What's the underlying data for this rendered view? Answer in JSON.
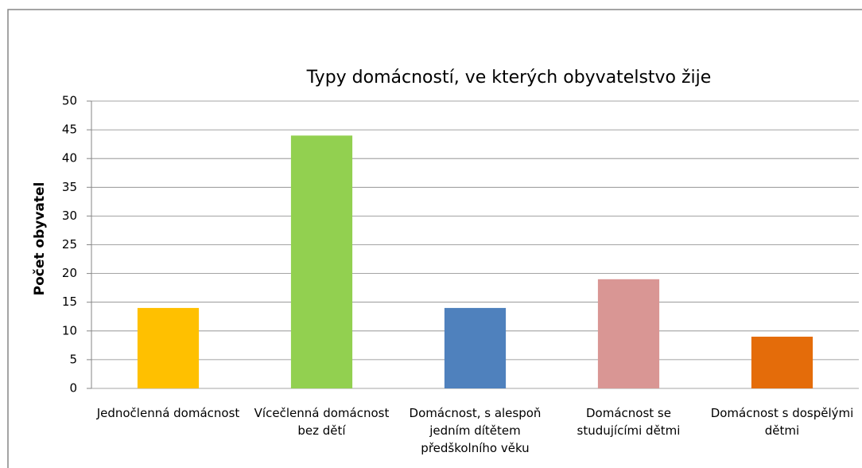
{
  "chart_data": {
    "type": "bar",
    "title": "Typy domácností,  ve kterých obyvatelstvo žije",
    "y_label": "Počet obyvatel",
    "categories": [
      "Jednočlenná domácnost",
      "Vícečlenná domácnost bez dětí",
      "Domácnost, s alespoň jedním dítětem předškolního věku",
      "Domácnost se studujícími dětmi",
      "Domácnost s dospělými dětmi"
    ],
    "values": [
      14,
      44,
      14,
      19,
      9
    ],
    "colors": [
      "#ffc000",
      "#92d050",
      "#4f81bd",
      "#d99694",
      "#e46c0a"
    ],
    "ylim": [
      0,
      50
    ],
    "yticks": [
      0,
      5,
      10,
      15,
      20,
      25,
      30,
      35,
      40,
      45,
      50
    ],
    "grid": true
  }
}
